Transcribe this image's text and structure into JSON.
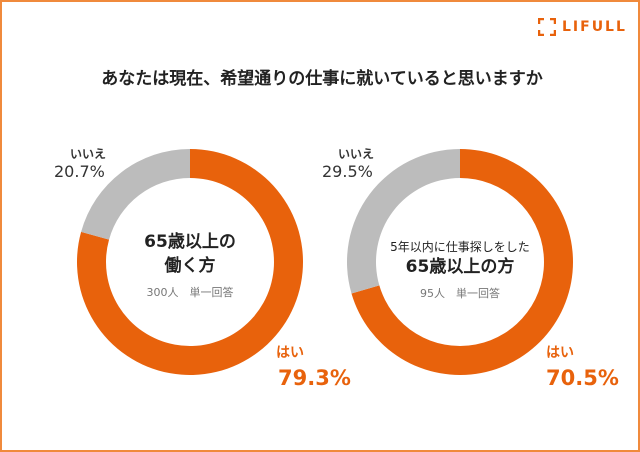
{
  "logo": {
    "text": "LIFULL"
  },
  "title": "あなたは現在、希望通りの仕事に就いていると思いますか",
  "colors": {
    "yes": "#e8620c",
    "no": "#bcbcbc"
  },
  "chart_data": [
    {
      "type": "pie",
      "donut": true,
      "center_title": "65歳以上の",
      "center_title2": "働く方",
      "note": "300人　単一回答",
      "slices": [
        {
          "label": "はい",
          "value": 79.3,
          "value_label": "79.3%"
        },
        {
          "label": "いいえ",
          "value": 20.7,
          "value_label": "20.7%"
        }
      ]
    },
    {
      "type": "pie",
      "donut": true,
      "center_sub": "5年以内に仕事探しをした",
      "center_title": "65歳以上の方",
      "note": "95人　単一回答",
      "slices": [
        {
          "label": "はい",
          "value": 70.5,
          "value_label": "70.5%"
        },
        {
          "label": "いいえ",
          "value": 29.5,
          "value_label": "29.5%"
        }
      ]
    }
  ]
}
